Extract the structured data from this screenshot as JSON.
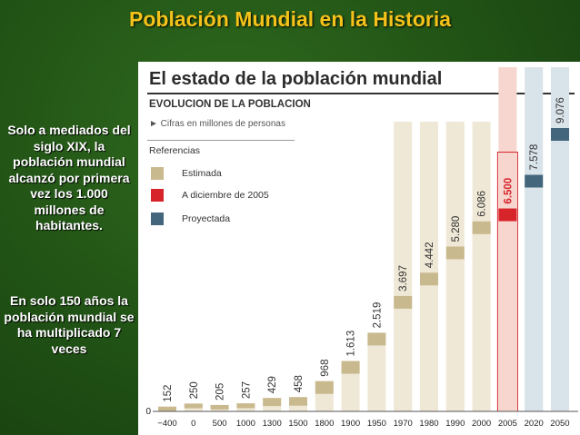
{
  "slide_title": "Población Mundial en la Historia",
  "side_text_1": "Solo a mediados del siglo XIX, la población mundial alcanzó por primera vez los 1.000 millones de habitantes.",
  "side_text_2": "En solo 150 años la población mundial se ha multiplicado 7 veces",
  "panel": {
    "title": "El estado de la población mundial",
    "subtitle": "EVOLUCION DE LA POBLACION",
    "note": "► Cifras en millones de personas",
    "refs_title": "Referencias",
    "legend": [
      {
        "label": "Estimada",
        "color": "#c9b98e"
      },
      {
        "label": "A diciembre de 2005",
        "color": "#d7242b"
      },
      {
        "label": "Proyectada",
        "color": "#44667d"
      }
    ]
  },
  "chart_data": {
    "type": "bar",
    "categories": [
      "−400",
      "0",
      "500",
      "1000",
      "1300",
      "1500",
      "1800",
      "1900",
      "1950",
      "1970",
      "1980",
      "1990",
      "2000",
      "2005",
      "2020",
      "2050"
    ],
    "values": [
      152,
      250,
      205,
      257,
      429,
      458,
      968,
      1613,
      2519,
      3697,
      4442,
      5280,
      6086,
      6500,
      7578,
      9076
    ],
    "value_labels": [
      "152",
      "250",
      "205",
      "257",
      "429",
      "458",
      "968",
      "1.613",
      "2.519",
      "3.697",
      "4.442",
      "5.280",
      "6.086",
      "6.500",
      "7.578",
      "9.076"
    ],
    "kinds": [
      "estimada",
      "estimada",
      "estimada",
      "estimada",
      "estimada",
      "estimada",
      "estimada",
      "estimada",
      "estimada",
      "estimada",
      "estimada",
      "estimada",
      "estimada",
      "dic2005",
      "proyectada",
      "proyectada"
    ],
    "y_zero_label": "0",
    "ylim": [
      0,
      9076
    ],
    "colors": {
      "estimada": "#c9b98e",
      "dic2005": "#d7242b",
      "proyectada": "#44667d",
      "column": "#efe8d6",
      "column_2005": "#f6d6cf",
      "column_proj": "#d9e3ea",
      "label_dic2005": "#d7242b"
    }
  }
}
